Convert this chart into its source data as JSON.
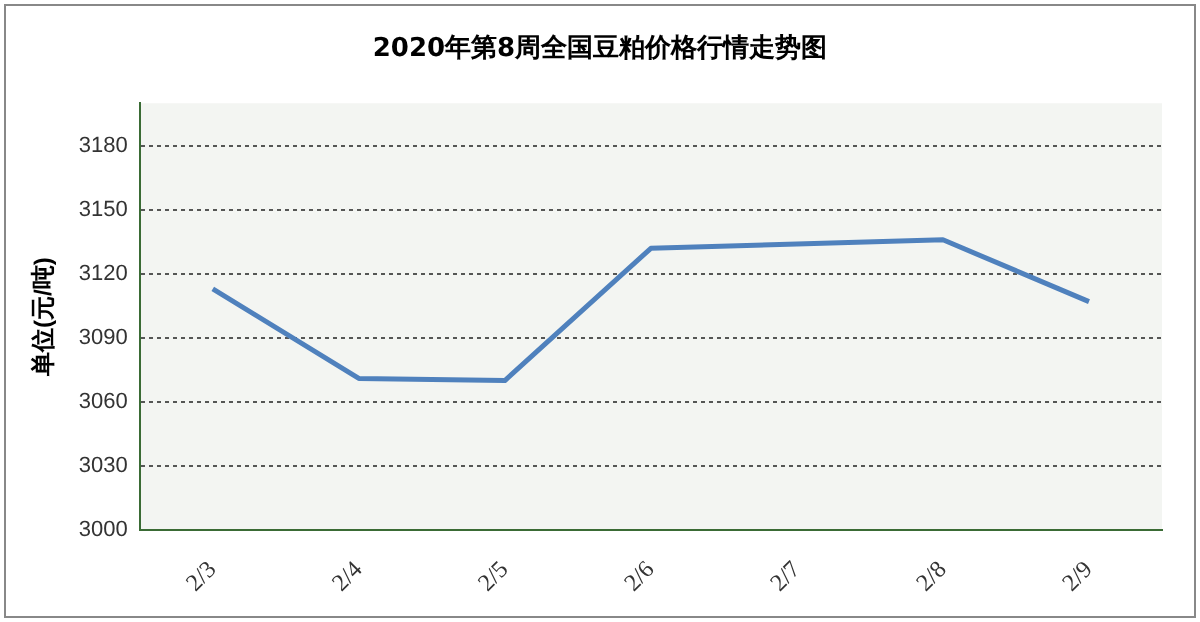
{
  "chart_data": {
    "type": "line",
    "title": "2020年第8周全国豆粕价格行情走势图",
    "ylabel": "单位(元/吨)",
    "categories": [
      "2/3",
      "2/4",
      "2/5",
      "2/6",
      "2/7",
      "2/8",
      "2/9"
    ],
    "series": [
      {
        "color": "#4f81bd",
        "values": [
          3113,
          3071,
          3070,
          3132,
          3134,
          3136,
          3107
        ]
      }
    ],
    "ylim": [
      3000,
      3200
    ],
    "yticks": [
      3000,
      3030,
      3060,
      3090,
      3120,
      3150,
      3180
    ],
    "grid": "y",
    "legend": false,
    "marker": "none",
    "line_style": "solid"
  }
}
